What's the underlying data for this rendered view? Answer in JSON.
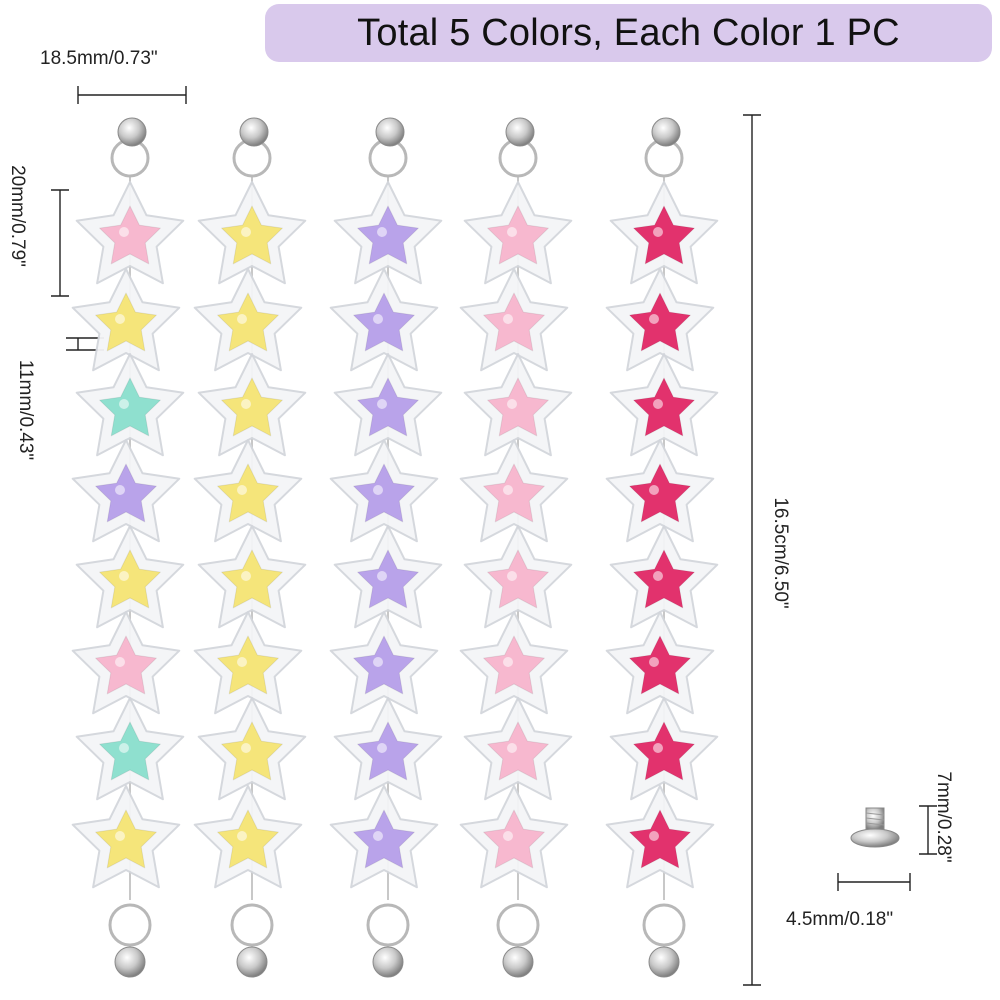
{
  "banner": {
    "text": "Total 5 Colors, Each Color 1 PC"
  },
  "dimensions": {
    "ring_width": "18.5mm/0.73\"",
    "star_height": "20mm/0.79\"",
    "gap": "11mm/0.43\"",
    "total_length": "16.5cm/6.50\"",
    "screw_height": "7mm/0.28\"",
    "screw_width": "4.5mm/0.18\""
  },
  "chains": [
    {
      "name": "mixed",
      "colors": [
        "#f7b8cf",
        "#f5e57a",
        "#8fe0cf",
        "#b9a3ea",
        "#f5e57a",
        "#f7b8cf",
        "#8fe0cf",
        "#f5e57a"
      ]
    },
    {
      "name": "yellow",
      "colors": [
        "#f5e57a",
        "#f5e57a",
        "#f5e57a",
        "#f5e57a",
        "#f5e57a",
        "#f5e57a",
        "#f5e57a",
        "#f5e57a"
      ]
    },
    {
      "name": "purple",
      "colors": [
        "#b9a3ea",
        "#b9a3ea",
        "#b9a3ea",
        "#b9a3ea",
        "#b9a3ea",
        "#b9a3ea",
        "#b9a3ea",
        "#b9a3ea"
      ]
    },
    {
      "name": "pink",
      "colors": [
        "#f7b8cf",
        "#f7b8cf",
        "#f7b8cf",
        "#f7b8cf",
        "#f7b8cf",
        "#f7b8cf",
        "#f7b8cf",
        "#f7b8cf"
      ]
    },
    {
      "name": "rose",
      "colors": [
        "#e2326d",
        "#e2326d",
        "#e2326d",
        "#e2326d",
        "#e2326d",
        "#e2326d",
        "#e2326d",
        "#e2326d"
      ]
    }
  ]
}
